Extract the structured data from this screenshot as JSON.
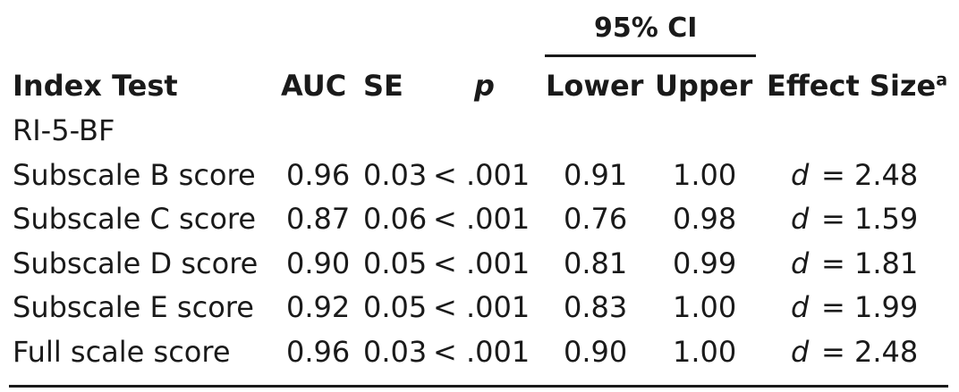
{
  "table": {
    "ci_header": "95% CI",
    "columns": {
      "index_test": "Index Test",
      "auc": "AUC",
      "se": "SE",
      "p": "p",
      "lower": "Lower",
      "upper": "Upper",
      "effect_size": "Effect Size",
      "effect_size_note": "a"
    },
    "group_label": "RI-5-BF",
    "rows": [
      {
        "test": "Subscale B score",
        "auc": "0.96",
        "se": "0.03",
        "p": "< .001",
        "lower": "0.91",
        "upper": "1.00",
        "d_symbol": "d",
        "effect": "= 2.48"
      },
      {
        "test": "Subscale C score",
        "auc": "0.87",
        "se": "0.06",
        "p": "< .001",
        "lower": "0.76",
        "upper": "0.98",
        "d_symbol": "d",
        "effect": "= 1.59"
      },
      {
        "test": "Subscale D score",
        "auc": "0.90",
        "se": "0.05",
        "p": "< .001",
        "lower": "0.81",
        "upper": "0.99",
        "d_symbol": "d",
        "effect": "= 1.81"
      },
      {
        "test": "Subscale E score",
        "auc": "0.92",
        "se": "0.05",
        "p": "< .001",
        "lower": "0.83",
        "upper": "1.00",
        "d_symbol": "d",
        "effect": "= 1.99"
      },
      {
        "test": "Full scale score",
        "auc": "0.96",
        "se": "0.03",
        "p": "< .001",
        "lower": "0.90",
        "upper": "1.00",
        "d_symbol": "d",
        "effect": "= 2.48"
      }
    ]
  }
}
